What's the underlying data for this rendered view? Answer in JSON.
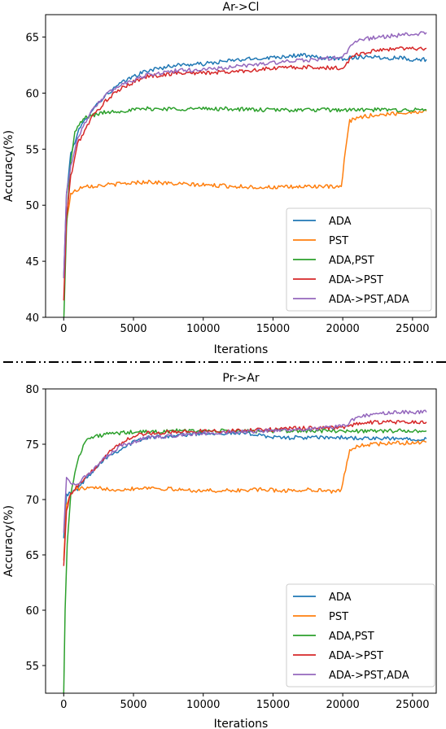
{
  "chart_data": [
    {
      "type": "line",
      "title": "Ar->Cl",
      "xlabel": "Iterations",
      "ylabel": "Accuracy(%)",
      "xlim": [
        -1300,
        26700
      ],
      "ylim": [
        40,
        67
      ],
      "xticks": [
        0,
        5000,
        10000,
        15000,
        20000,
        25000
      ],
      "yticks": [
        40,
        45,
        50,
        55,
        60,
        65
      ],
      "legend_position": "lower right",
      "grid": false,
      "series": [
        {
          "name": "ADA",
          "color": "#1f77b4",
          "x": [
            0,
            200,
            500,
            1000,
            2000,
            3000,
            4000,
            5000,
            6000,
            8000,
            10000,
            12000,
            14000,
            16000,
            17000,
            18000,
            19000,
            20000,
            21000,
            22000,
            23000,
            24000,
            25000,
            26000
          ],
          "y": [
            43.5,
            51,
            54.5,
            56.5,
            58.5,
            59.8,
            60.8,
            61.5,
            62.0,
            62.5,
            62.6,
            62.9,
            63.1,
            63.3,
            63.4,
            63.2,
            63.1,
            63.1,
            63.2,
            63.3,
            63.1,
            63.2,
            63.0,
            63.0
          ]
        },
        {
          "name": "PST",
          "color": "#ff7f0e",
          "x": [
            0,
            200,
            500,
            1000,
            1500,
            2000,
            3000,
            4000,
            5000,
            6000,
            7000,
            8000,
            10000,
            12000,
            14000,
            16000,
            18000,
            19500,
            19900,
            20200,
            20500,
            21000,
            22000,
            23000,
            24000,
            25000,
            26000
          ],
          "y": [
            43.5,
            48.5,
            51,
            51.4,
            51.8,
            51.7,
            51.8,
            51.9,
            52.0,
            52.1,
            52.0,
            51.9,
            51.8,
            51.7,
            51.6,
            51.6,
            51.7,
            51.6,
            51.6,
            55.0,
            57.5,
            57.8,
            58.0,
            58.1,
            58.2,
            58.3,
            58.4
          ]
        },
        {
          "name": "ADA,PST",
          "color": "#2ca02c",
          "x": [
            0,
            200,
            500,
            800,
            1200,
            1500,
            2000,
            3000,
            4000,
            5000,
            6000,
            8000,
            10000,
            12000,
            14000,
            16000,
            18000,
            20000,
            22000,
            24000,
            26000
          ],
          "y": [
            39.5,
            48,
            54,
            56.5,
            57.3,
            57.8,
            58.0,
            58.3,
            58.4,
            58.5,
            58.6,
            58.6,
            58.6,
            58.6,
            58.5,
            58.5,
            58.5,
            58.5,
            58.5,
            58.5,
            58.5
          ]
        },
        {
          "name": "ADA->PST",
          "color": "#d62728",
          "x": [
            0,
            200,
            500,
            1000,
            2000,
            3000,
            4000,
            5000,
            6000,
            7000,
            8000,
            10000,
            12000,
            14000,
            16000,
            18000,
            20000,
            20200,
            20800,
            22000,
            23000,
            24000,
            25000,
            26000
          ],
          "y": [
            41.5,
            49,
            52.5,
            55.5,
            57.8,
            59.3,
            60.3,
            61.0,
            61.5,
            61.6,
            61.8,
            61.8,
            61.9,
            62.1,
            62.3,
            62.3,
            62.2,
            62.6,
            63.4,
            63.7,
            63.9,
            64.0,
            64.0,
            64.0
          ]
        },
        {
          "name": "ADA->PST,ADA",
          "color": "#9467bd",
          "x": [
            0,
            200,
            500,
            1000,
            2000,
            3000,
            4000,
            5000,
            6000,
            8000,
            10000,
            12000,
            14000,
            16000,
            18000,
            20000,
            20300,
            20800,
            21500,
            22500,
            23500,
            24500,
            25500,
            26000
          ],
          "y": [
            43.5,
            51,
            53.5,
            56,
            58.5,
            59.8,
            60.7,
            61.2,
            61.6,
            62.0,
            62.1,
            62.3,
            62.6,
            62.8,
            63.0,
            63.2,
            63.7,
            64.5,
            64.8,
            65.0,
            65.1,
            65.2,
            65.3,
            65.4
          ]
        }
      ]
    },
    {
      "type": "line",
      "title": "Pr->Ar",
      "xlabel": "Iterations",
      "ylabel": "Accuracy(%)",
      "xlim": [
        -1300,
        26700
      ],
      "ylim": [
        52.5,
        80
      ],
      "xticks": [
        0,
        5000,
        10000,
        15000,
        20000,
        25000
      ],
      "yticks": [
        55,
        60,
        65,
        70,
        75,
        80
      ],
      "legend_position": "lower right",
      "grid": false,
      "series": [
        {
          "name": "ADA",
          "color": "#1f77b4",
          "x": [
            0,
            200,
            500,
            1000,
            2000,
            3000,
            4000,
            5000,
            6000,
            8000,
            10000,
            12000,
            14000,
            15000,
            16000,
            18000,
            20000,
            22000,
            24000,
            26000
          ],
          "y": [
            66.5,
            70.5,
            70.5,
            71.0,
            72.5,
            73.8,
            74.5,
            75.2,
            75.6,
            75.8,
            76.0,
            76.0,
            75.9,
            75.6,
            75.6,
            75.6,
            75.6,
            75.5,
            75.5,
            75.5
          ]
        },
        {
          "name": "PST",
          "color": "#ff7f0e",
          "x": [
            0,
            200,
            500,
            1000,
            2000,
            3000,
            4000,
            5000,
            6000,
            8000,
            10000,
            12000,
            14000,
            16000,
            18000,
            19500,
            19900,
            20200,
            20500,
            21000,
            22000,
            24000,
            26000
          ],
          "y": [
            64.5,
            69.5,
            70.5,
            71.0,
            71.0,
            71.0,
            70.9,
            71.0,
            71.1,
            70.9,
            70.8,
            70.8,
            70.9,
            70.8,
            70.9,
            70.7,
            70.8,
            72.8,
            74.5,
            74.8,
            75.0,
            75.1,
            75.2
          ]
        },
        {
          "name": "ADA,PST",
          "color": "#2ca02c",
          "x": [
            0,
            100,
            250,
            500,
            1000,
            1500,
            2000,
            3000,
            4000,
            5000,
            6000,
            8000,
            10000,
            12000,
            14000,
            16000,
            18000,
            20000,
            22000,
            24000,
            26000
          ],
          "y": [
            52.5,
            60,
            66,
            70.5,
            73.5,
            75.3,
            75.6,
            75.9,
            76.0,
            76.1,
            76.1,
            76.2,
            76.2,
            76.2,
            76.2,
            76.2,
            76.2,
            76.2,
            76.2,
            76.2,
            76.2
          ]
        },
        {
          "name": "ADA->PST",
          "color": "#d62728",
          "x": [
            0,
            200,
            500,
            1000,
            2000,
            3000,
            4000,
            5000,
            6000,
            8000,
            10000,
            12000,
            14000,
            16000,
            18000,
            20000,
            20500,
            21500,
            22500,
            24000,
            26000
          ],
          "y": [
            64,
            69,
            70.5,
            71.2,
            72.5,
            74.0,
            75.0,
            75.8,
            76.0,
            76.1,
            76.2,
            76.2,
            76.3,
            76.4,
            76.5,
            76.5,
            76.7,
            76.9,
            77.0,
            77.0,
            77.0
          ]
        },
        {
          "name": "ADA->PST,ADA",
          "color": "#9467bd",
          "x": [
            0,
            200,
            500,
            1000,
            2000,
            3000,
            4000,
            5000,
            6000,
            8000,
            10000,
            12000,
            14000,
            16000,
            18000,
            20000,
            20500,
            21000,
            22000,
            23000,
            24000,
            26000
          ],
          "y": [
            67,
            72,
            71.5,
            71.5,
            72.5,
            73.8,
            74.8,
            75.2,
            75.6,
            75.8,
            76.0,
            76.1,
            76.2,
            76.3,
            76.4,
            76.6,
            77.0,
            77.4,
            77.7,
            77.8,
            77.9,
            77.9
          ]
        }
      ]
    }
  ]
}
